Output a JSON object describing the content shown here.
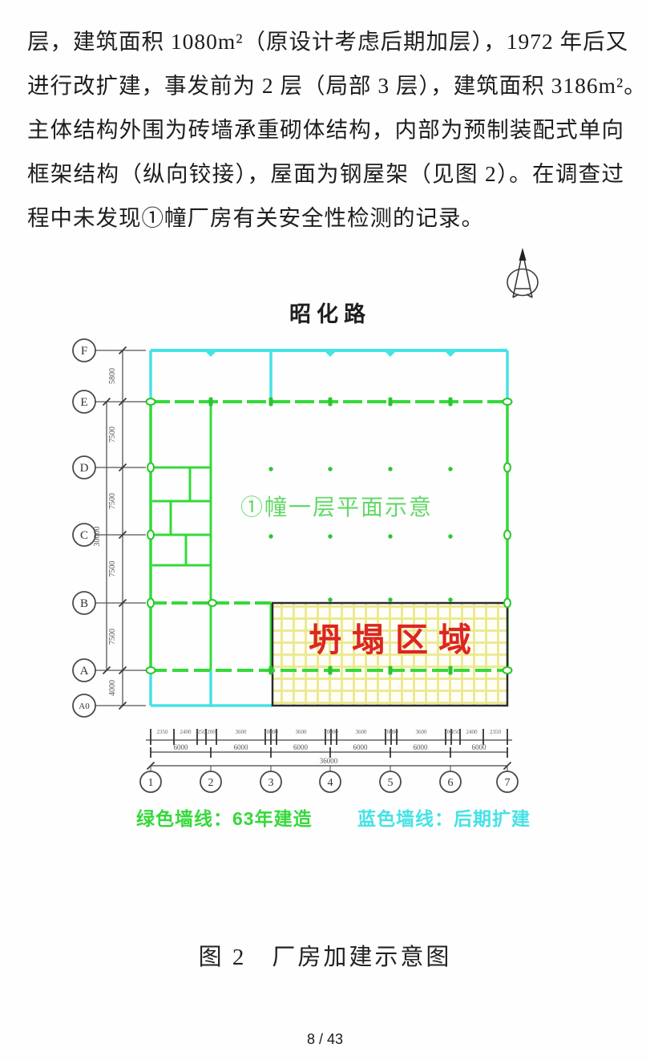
{
  "page": {
    "paragraph_lines": [
      "层，建筑面积 1080m²（原设计考虑后期加层），1972 年后又",
      "进行改扩建，事发前为 2 层（局部 3 层），建筑面积 3186m²。",
      "主体结构外围为砖墙承重砌体结构，内部为预制装配式单向",
      "框架结构（纵向铰接），屋面为钢屋架（见图 2）。在调查过",
      "程中未发现①幢厂房有关安全性检测的记录。"
    ],
    "caption": "图 2　厂房加建示意图",
    "page_number": "8 / 43"
  },
  "diagram": {
    "road_label": "昭化路",
    "plan_label": "①幢一层平面示意",
    "collapse_label": "坍塌区域",
    "legend": {
      "green": "绿色墙线：63年建造",
      "blue": "蓝色墙线：后期扩建"
    },
    "icons": {
      "north": "north-arrow"
    },
    "row_axis": {
      "labels": [
        "F",
        "E",
        "D",
        "C",
        "B",
        "A",
        "A0"
      ],
      "dims": [
        "5800",
        "7500",
        "7500",
        "7500",
        "7500",
        "4000"
      ],
      "total": "30000"
    },
    "col_axis": {
      "labels": [
        "1",
        "2",
        "3",
        "4",
        "5",
        "6",
        "7"
      ],
      "detail_dims": [
        "2350",
        "2400",
        "250",
        "200",
        "3600",
        "200",
        "200",
        "3600",
        "200",
        "200",
        "3600",
        "200",
        "200",
        "3600",
        "200",
        "250",
        "2400",
        "2350"
      ],
      "bay_dims": [
        "6000",
        "6000",
        "6000",
        "6000",
        "6000",
        "6000"
      ],
      "total": "36000"
    },
    "colors": {
      "wall_green": "#35d93a",
      "marker_green": "#2bc42f",
      "label_green": "#63d968",
      "cyan": "#45e2e6",
      "hatch_yellow": "#ebe88f",
      "collapse_red": "#dc2621",
      "line_black": "#2b2b2b"
    }
  }
}
